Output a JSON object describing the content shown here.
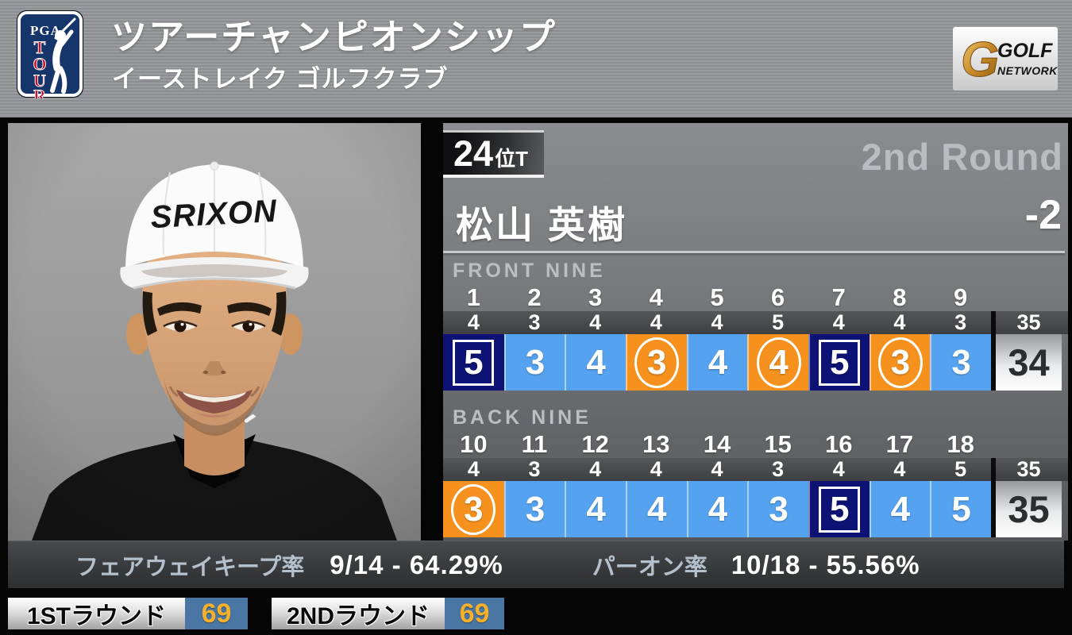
{
  "header": {
    "tournament_title": "ツアーチャンピオンシップ",
    "course_name": "イーストレイク ゴルフクラブ",
    "pga_logo": {
      "top": "PGA",
      "letters": [
        "T",
        "O",
        "U",
        "R"
      ]
    },
    "network_logo": {
      "line1": "GOLF",
      "line2": "NETWORK",
      "monogram": "G"
    }
  },
  "player": {
    "rank": "24",
    "rank_suffix": "位T",
    "round_label": "2nd Round",
    "name": "松山 英樹",
    "total_score": "-2"
  },
  "scorecard": {
    "front": {
      "label": "FRONT NINE",
      "holes": [
        "1",
        "2",
        "3",
        "4",
        "5",
        "6",
        "7",
        "8",
        "9"
      ],
      "pars": [
        "4",
        "3",
        "4",
        "4",
        "4",
        "5",
        "4",
        "4",
        "3"
      ],
      "par_total": "35",
      "scores": [
        {
          "value": "5",
          "result": "bogey"
        },
        {
          "value": "3",
          "result": "par"
        },
        {
          "value": "4",
          "result": "par"
        },
        {
          "value": "3",
          "result": "birdie"
        },
        {
          "value": "4",
          "result": "par"
        },
        {
          "value": "4",
          "result": "birdie"
        },
        {
          "value": "5",
          "result": "bogey"
        },
        {
          "value": "3",
          "result": "birdie"
        },
        {
          "value": "3",
          "result": "par"
        }
      ],
      "score_total": "34"
    },
    "back": {
      "label": "BACK NINE",
      "holes": [
        "10",
        "11",
        "12",
        "13",
        "14",
        "15",
        "16",
        "17",
        "18"
      ],
      "pars": [
        "4",
        "3",
        "4",
        "4",
        "4",
        "3",
        "4",
        "4",
        "5"
      ],
      "par_total": "35",
      "scores": [
        {
          "value": "3",
          "result": "birdie"
        },
        {
          "value": "3",
          "result": "par"
        },
        {
          "value": "4",
          "result": "par"
        },
        {
          "value": "4",
          "result": "par"
        },
        {
          "value": "4",
          "result": "par"
        },
        {
          "value": "3",
          "result": "par"
        },
        {
          "value": "5",
          "result": "bogey"
        },
        {
          "value": "4",
          "result": "par"
        },
        {
          "value": "5",
          "result": "par"
        }
      ],
      "score_total": "35"
    }
  },
  "stats": {
    "fairway_label": "フェアウェイキープ率",
    "fairway_value": "9/14 - 64.29%",
    "gir_label": "パーオン率",
    "gir_value": "10/18 - 55.56%"
  },
  "rounds": [
    {
      "label": "1STラウンド",
      "score": "69"
    },
    {
      "label": "2NDラウンド",
      "score": "69"
    }
  ],
  "colors": {
    "par_cell": "#55a3f0",
    "birdie_cell": "#f6911e",
    "bogey_cell": "#0d1375",
    "round_score_bg": "#4a76a4",
    "round_score_text": "#f5b02a"
  }
}
